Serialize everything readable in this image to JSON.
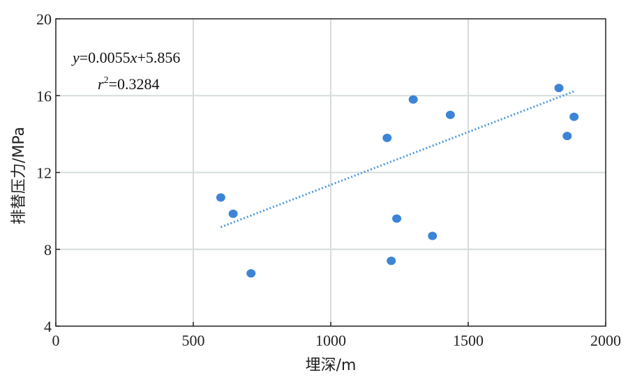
{
  "chart_data": {
    "type": "scatter",
    "title": "",
    "xlabel": "埋深/m",
    "ylabel": "排替压力/MPa",
    "xlim": [
      0,
      2000
    ],
    "ylim": [
      4,
      20
    ],
    "xticks": [
      0,
      500,
      1000,
      1500,
      2000
    ],
    "yticks": [
      4,
      8,
      12,
      16,
      20
    ],
    "grid": true,
    "colors": {
      "points": "#3d84d6",
      "trendline": "#4f9ad9",
      "grid": "#d6dcdc",
      "axis": "#222222"
    },
    "series": [
      {
        "points": [
          {
            "x": 600,
            "y": 10.7
          },
          {
            "x": 645,
            "y": 9.85
          },
          {
            "x": 710,
            "y": 6.75
          },
          {
            "x": 1205,
            "y": 13.8
          },
          {
            "x": 1220,
            "y": 7.4
          },
          {
            "x": 1240,
            "y": 9.6
          },
          {
            "x": 1300,
            "y": 15.8
          },
          {
            "x": 1370,
            "y": 8.7
          },
          {
            "x": 1435,
            "y": 15.0
          },
          {
            "x": 1830,
            "y": 16.4
          },
          {
            "x": 1860,
            "y": 13.9
          },
          {
            "x": 1885,
            "y": 14.9
          }
        ]
      }
    ],
    "trendline": {
      "slope": 0.0055,
      "intercept": 5.856,
      "x_range": [
        600,
        1885
      ],
      "style": "dotted"
    },
    "annotations": {
      "equation_y": "y",
      "equation_eq": "=0.0055",
      "equation_x": "x",
      "equation_rest": "+5.856",
      "r2_r": "r",
      "r2_sup": "2",
      "r2_rest": "=0.3284"
    }
  }
}
